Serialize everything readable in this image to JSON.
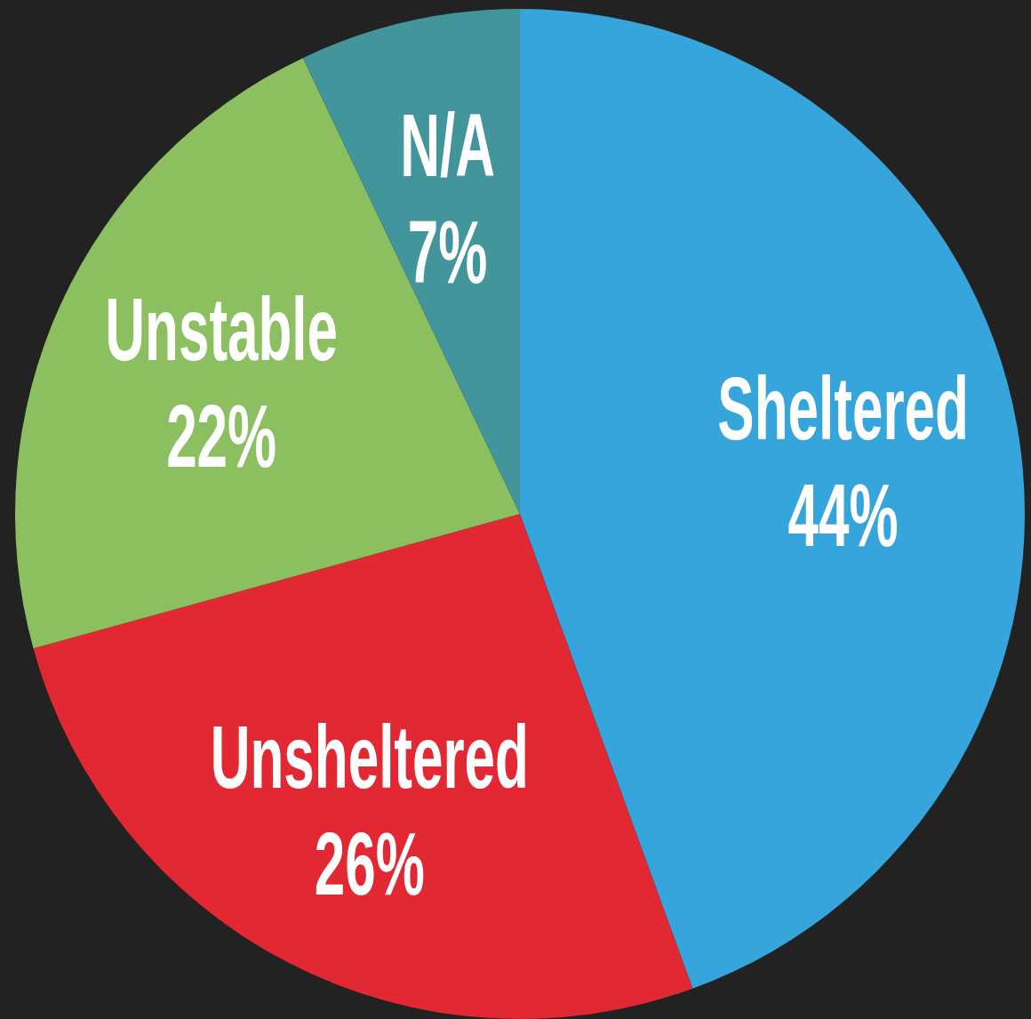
{
  "chart_data": {
    "type": "pie",
    "categories": [
      "Sheltered",
      "Unsheltered",
      "Unstable",
      "N/A"
    ],
    "values": [
      44,
      26,
      22,
      7
    ],
    "colors": [
      "#36a5dc",
      "#e22832",
      "#8cbf60",
      "#42969b"
    ],
    "value_labels": [
      "44%",
      "26%",
      "22%",
      "7%"
    ]
  }
}
